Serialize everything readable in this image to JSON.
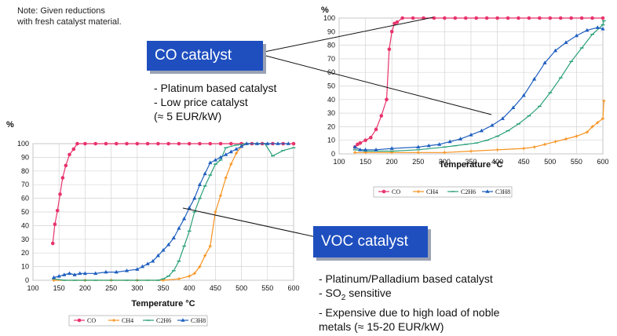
{
  "note": [
    "Note: Given reductions",
    "with fresh catalyst material."
  ],
  "co_callout": {
    "title": "CO catalyst",
    "bullets": [
      "- Platinum based catalyst",
      "- Low price catalyst",
      "(≈ 5 EUR/kW)"
    ]
  },
  "voc_callout": {
    "title": "VOC catalyst",
    "bullets": [
      "- Platinum/Palladium based catalyst",
      "- SO",
      "2",
      " sensitive",
      "- Expensive due to high load of noble",
      "metals (≈ 15-20 EUR/kW)"
    ]
  },
  "colors": {
    "CO": "#e8336b",
    "CH4": "#f7921e",
    "C2H6": "#2aa078",
    "C3H8": "#1f5fbf",
    "callout": "#1f4fbf"
  },
  "chart_data": [
    {
      "id": "co-chart",
      "type": "line",
      "xlabel": "Temperature °C",
      "ylabel": "%",
      "xlim": [
        100,
        600
      ],
      "ylim": [
        0,
        100
      ],
      "xticks": [
        100,
        150,
        200,
        250,
        300,
        350,
        400,
        450,
        500,
        550,
        600
      ],
      "yticks": [
        0,
        10,
        20,
        30,
        40,
        50,
        60,
        70,
        80,
        90,
        100
      ],
      "grid": true,
      "legend": "bottom",
      "series": [
        {
          "name": "CO",
          "points": [
            [
              130,
              5
            ],
            [
              135,
              7
            ],
            [
              140,
              8
            ],
            [
              150,
              10
            ],
            [
              160,
              12
            ],
            [
              170,
              18
            ],
            [
              180,
              28
            ],
            [
              190,
              40
            ],
            [
              195,
              77
            ],
            [
              200,
              90
            ],
            [
              205,
              96
            ],
            [
              210,
              97
            ],
            [
              220,
              100
            ],
            [
              240,
              100
            ],
            [
              260,
              100
            ],
            [
              280,
              100
            ],
            [
              300,
              100
            ],
            [
              320,
              100
            ],
            [
              340,
              100
            ],
            [
              360,
              100
            ],
            [
              380,
              100
            ],
            [
              400,
              100
            ],
            [
              420,
              100
            ],
            [
              440,
              100
            ],
            [
              460,
              100
            ],
            [
              480,
              100
            ],
            [
              500,
              100
            ],
            [
              520,
              100
            ],
            [
              540,
              100
            ],
            [
              560,
              100
            ],
            [
              580,
              100
            ],
            [
              600,
              100
            ]
          ]
        },
        {
          "name": "CH4",
          "points": [
            [
              130,
              1
            ],
            [
              150,
              1
            ],
            [
              200,
              1
            ],
            [
              250,
              1
            ],
            [
              300,
              1
            ],
            [
              350,
              2
            ],
            [
              400,
              3
            ],
            [
              450,
              4
            ],
            [
              470,
              5
            ],
            [
              490,
              7
            ],
            [
              510,
              9
            ],
            [
              530,
              11
            ],
            [
              550,
              13
            ],
            [
              570,
              16
            ],
            [
              580,
              20
            ],
            [
              590,
              23
            ],
            [
              600,
              26
            ],
            [
              602,
              39
            ]
          ]
        },
        {
          "name": "C2H6",
          "points": [
            [
              130,
              3
            ],
            [
              150,
              2
            ],
            [
              200,
              2
            ],
            [
              250,
              3
            ],
            [
              300,
              5
            ],
            [
              320,
              6
            ],
            [
              340,
              7
            ],
            [
              360,
              8
            ],
            [
              380,
              10
            ],
            [
              400,
              13
            ],
            [
              420,
              17
            ],
            [
              440,
              22
            ],
            [
              460,
              28
            ],
            [
              480,
              35
            ],
            [
              500,
              45
            ],
            [
              520,
              56
            ],
            [
              540,
              68
            ],
            [
              560,
              78
            ],
            [
              580,
              88
            ],
            [
              600,
              95
            ],
            [
              602,
              98
            ]
          ]
        },
        {
          "name": "C3H8",
          "points": [
            [
              130,
              5
            ],
            [
              140,
              3
            ],
            [
              150,
              3
            ],
            [
              170,
              3
            ],
            [
              200,
              4
            ],
            [
              250,
              5
            ],
            [
              270,
              6
            ],
            [
              290,
              7
            ],
            [
              310,
              9
            ],
            [
              330,
              11
            ],
            [
              350,
              14
            ],
            [
              370,
              17
            ],
            [
              390,
              21
            ],
            [
              410,
              26
            ],
            [
              430,
              34
            ],
            [
              450,
              43
            ],
            [
              470,
              55
            ],
            [
              490,
              67
            ],
            [
              510,
              76
            ],
            [
              530,
              82
            ],
            [
              550,
              87
            ],
            [
              570,
              91
            ],
            [
              590,
              93
            ],
            [
              600,
              92
            ]
          ]
        }
      ]
    },
    {
      "id": "voc-chart",
      "type": "line",
      "xlabel": "Temperature °C",
      "ylabel": "%",
      "xlim": [
        100,
        600
      ],
      "ylim": [
        0,
        100
      ],
      "xticks": [
        100,
        150,
        200,
        250,
        300,
        350,
        400,
        450,
        500,
        550,
        600
      ],
      "yticks": [
        0,
        10,
        20,
        30,
        40,
        50,
        60,
        70,
        80,
        90,
        100
      ],
      "grid": true,
      "legend": "bottom",
      "series": [
        {
          "name": "CO",
          "points": [
            [
              138,
              27
            ],
            [
              142,
              41
            ],
            [
              147,
              51
            ],
            [
              152,
              63
            ],
            [
              157,
              75
            ],
            [
              163,
              84
            ],
            [
              170,
              92
            ],
            [
              178,
              96
            ],
            [
              185,
              100
            ],
            [
              200,
              100
            ],
            [
              220,
              100
            ],
            [
              240,
              100
            ],
            [
              260,
              100
            ],
            [
              280,
              100
            ],
            [
              300,
              100
            ],
            [
              320,
              100
            ],
            [
              340,
              100
            ],
            [
              360,
              100
            ],
            [
              380,
              100
            ],
            [
              400,
              100
            ],
            [
              420,
              100
            ],
            [
              440,
              100
            ],
            [
              460,
              100
            ],
            [
              480,
              100
            ],
            [
              500,
              100
            ],
            [
              520,
              100
            ],
            [
              540,
              100
            ],
            [
              560,
              100
            ],
            [
              580,
              100
            ],
            [
              600,
              100
            ]
          ]
        },
        {
          "name": "CH4",
          "points": [
            [
              140,
              0
            ],
            [
              200,
              0
            ],
            [
              250,
              0
            ],
            [
              300,
              0
            ],
            [
              350,
              0
            ],
            [
              380,
              1
            ],
            [
              400,
              3
            ],
            [
              410,
              5
            ],
            [
              420,
              10
            ],
            [
              430,
              18
            ],
            [
              440,
              25
            ],
            [
              450,
              50
            ],
            [
              460,
              62
            ],
            [
              470,
              75
            ],
            [
              480,
              85
            ],
            [
              490,
              93
            ],
            [
              500,
              98
            ],
            [
              510,
              100
            ],
            [
              530,
              100
            ],
            [
              550,
              100
            ]
          ]
        },
        {
          "name": "C2H6",
          "points": [
            [
              140,
              1
            ],
            [
              160,
              0
            ],
            [
              180,
              0
            ],
            [
              200,
              0
            ],
            [
              220,
              0
            ],
            [
              250,
              0
            ],
            [
              280,
              0
            ],
            [
              300,
              0
            ],
            [
              320,
              0
            ],
            [
              340,
              0
            ],
            [
              350,
              1
            ],
            [
              360,
              3
            ],
            [
              370,
              7
            ],
            [
              380,
              14
            ],
            [
              390,
              25
            ],
            [
              400,
              36
            ],
            [
              410,
              50
            ],
            [
              420,
              60
            ],
            [
              430,
              69
            ],
            [
              440,
              77
            ],
            [
              450,
              85
            ],
            [
              460,
              88
            ],
            [
              470,
              97
            ],
            [
              490,
              99
            ],
            [
              510,
              100
            ],
            [
              530,
              100
            ],
            [
              545,
              100
            ],
            [
              560,
              91
            ],
            [
              580,
              95
            ],
            [
              600,
              97
            ]
          ]
        },
        {
          "name": "C3H8",
          "points": [
            [
              140,
              2
            ],
            [
              150,
              3
            ],
            [
              160,
              4
            ],
            [
              170,
              5
            ],
            [
              180,
              4
            ],
            [
              190,
              5
            ],
            [
              200,
              5
            ],
            [
              220,
              5
            ],
            [
              240,
              6
            ],
            [
              260,
              6
            ],
            [
              280,
              7
            ],
            [
              300,
              8
            ],
            [
              310,
              10
            ],
            [
              320,
              12
            ],
            [
              330,
              14
            ],
            [
              340,
              18
            ],
            [
              350,
              22
            ],
            [
              360,
              26
            ],
            [
              370,
              31
            ],
            [
              380,
              38
            ],
            [
              390,
              45
            ],
            [
              400,
              53
            ],
            [
              410,
              60
            ],
            [
              420,
              70
            ],
            [
              430,
              78
            ],
            [
              440,
              86
            ],
            [
              450,
              88
            ],
            [
              460,
              90
            ],
            [
              470,
              92
            ],
            [
              480,
              94
            ],
            [
              490,
              96
            ],
            [
              500,
              98
            ],
            [
              510,
              100
            ],
            [
              530,
              100
            ],
            [
              550,
              100
            ],
            [
              570,
              100
            ],
            [
              590,
              100
            ]
          ]
        }
      ]
    }
  ]
}
